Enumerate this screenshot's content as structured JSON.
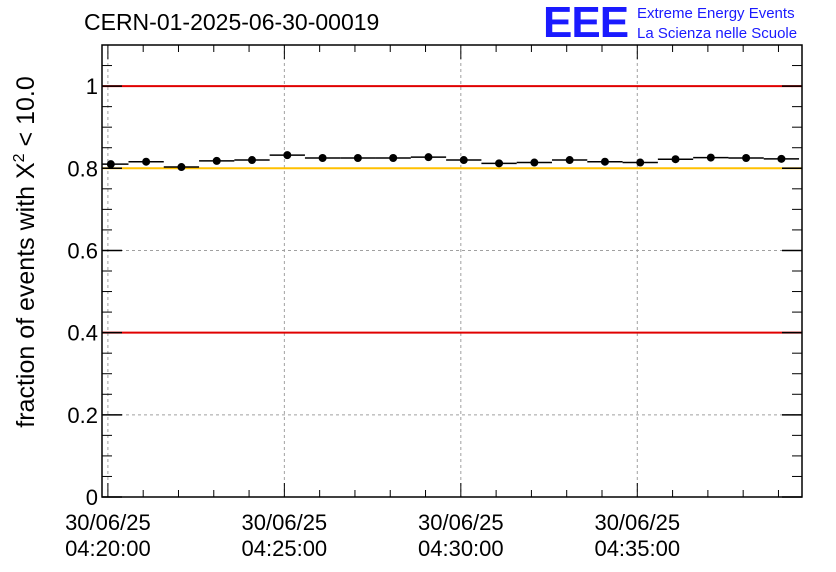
{
  "header": {
    "run_title": "CERN-01-2025-06-30-00019",
    "logo_mark": "EEE",
    "logo_line1": "Extreme Energy Events",
    "logo_line2": "La Scienza nelle Scuole"
  },
  "colors": {
    "threshold_red": "#e00000",
    "threshold_yellow": "#ffc000",
    "grid": "#a0a0a0",
    "marker": "#000000"
  },
  "chart_data": {
    "type": "scatter",
    "title": "CERN-01-2025-06-30-00019",
    "xlabel": "",
    "ylabel_main": "fraction of events with X",
    "ylabel_sup": "2",
    "ylabel_tail": " < 10.0",
    "x_unit": "minutes after 30/06/25 04:20:00",
    "xlim": [
      -0.167,
      19.667
    ],
    "ylim": [
      0,
      1.1
    ],
    "grid": true,
    "x_tick_positions": [
      0,
      5,
      10,
      15
    ],
    "x_tick_dates": [
      "30/06/25",
      "30/06/25",
      "30/06/25",
      "30/06/25"
    ],
    "x_tick_times": [
      "04:20:00",
      "04:25:00",
      "04:30:00",
      "04:35:00"
    ],
    "y_ticks": [
      0,
      0.2,
      0.4,
      0.6,
      0.8,
      1
    ],
    "y_tick_labels": [
      "0",
      "0.2",
      "0.4",
      "0.6",
      "0.8",
      "1"
    ],
    "bin_width": 1,
    "x": [
      0.0833,
      1.0833,
      2.0833,
      3.0833,
      4.0833,
      5.0833,
      6.0833,
      7.0833,
      8.0833,
      9.0833,
      10.0833,
      11.0833,
      12.0833,
      13.0833,
      14.0833,
      15.0833,
      16.0833,
      17.0833,
      18.0833,
      19.0833
    ],
    "values": [
      0.81,
      0.816,
      0.803,
      0.818,
      0.82,
      0.832,
      0.825,
      0.825,
      0.825,
      0.827,
      0.82,
      0.812,
      0.814,
      0.82,
      0.816,
      0.814,
      0.822,
      0.826,
      0.825,
      0.823
    ],
    "thresholds": [
      {
        "value": 1.0,
        "color": "#e00000"
      },
      {
        "value": 0.8,
        "color": "#ffc000"
      },
      {
        "value": 0.4,
        "color": "#e00000"
      }
    ]
  }
}
